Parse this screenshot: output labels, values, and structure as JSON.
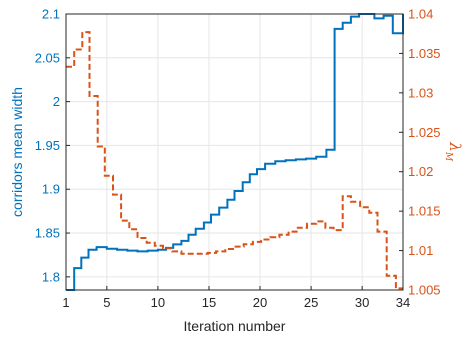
{
  "chart_data": {
    "type": "line",
    "xlabel": "Iteration number",
    "ylabel_left": "corridors mean width",
    "ylabel_right_main": "λ",
    "ylabel_right_sub": "M",
    "grid": true,
    "x_ticks": [
      1,
      5,
      10,
      15,
      20,
      25,
      30,
      34
    ],
    "x_ticklabels": [
      "1",
      "5",
      "10",
      "15",
      "20",
      "25",
      "30",
      "34"
    ],
    "xlim": [
      1,
      34
    ],
    "ylim_left": [
      1.785,
      2.1
    ],
    "ylim_right": [
      1.005,
      1.04
    ],
    "y_ticks_left": [
      1.8,
      1.85,
      1.9,
      1.95,
      2,
      2.05,
      2.1
    ],
    "y_ticklabels_left": [
      "1.8",
      "1.85",
      "1.9",
      "1.95",
      "2",
      "2.05",
      "2.1"
    ],
    "y_ticks_right": [
      1.005,
      1.01,
      1.015,
      1.02,
      1.025,
      1.03,
      1.035,
      1.04
    ],
    "y_ticklabels_right": [
      "1.005",
      "1.01",
      "1.015",
      "1.02",
      "1.025",
      "1.03",
      "1.035",
      "1.04"
    ],
    "colors": {
      "left": "#0072BD",
      "right": "#D95319",
      "grid": "#e6e6e6",
      "axis": "#262626"
    },
    "series": [
      {
        "axis": "left",
        "style": "solid-stairs",
        "x": [
          1,
          1.8,
          2.5,
          3.2,
          4,
          5,
          6,
          7,
          8,
          9,
          10,
          10.8,
          11.5,
          12.3,
          13,
          13.7,
          14.5,
          15.2,
          16,
          16.8,
          17.5,
          18.3,
          19,
          19.7,
          20.5,
          21.5,
          22.5,
          23.5,
          24.5,
          25.5,
          26.5,
          27.3,
          28.1,
          28.9,
          29.7,
          30.5,
          31.2,
          32.1,
          33,
          34
        ],
        "y": [
          1.785,
          1.81,
          1.822,
          1.831,
          1.834,
          1.832,
          1.831,
          1.83,
          1.829,
          1.83,
          1.831,
          1.833,
          1.837,
          1.841,
          1.848,
          1.855,
          1.862,
          1.871,
          1.879,
          1.888,
          1.898,
          1.908,
          1.917,
          1.923,
          1.929,
          1.932,
          1.933,
          1.934,
          1.935,
          1.937,
          1.945,
          2.083,
          2.09,
          2.097,
          2.1,
          2.1,
          2.095,
          2.098,
          2.078,
          2.1
        ]
      },
      {
        "axis": "right",
        "style": "dashed-stairs",
        "x": [
          1,
          1.8,
          2.6,
          3.3,
          4.1,
          4.8,
          5.6,
          6.4,
          7.2,
          8,
          8.9,
          9.7,
          10.5,
          11.4,
          12.3,
          13.2,
          14,
          14.9,
          15.7,
          16.6,
          17.5,
          18.4,
          19.3,
          20.1,
          21,
          21.9,
          22.8,
          23.7,
          24.6,
          25.5,
          26.4,
          27.2,
          28.1,
          28.9,
          29.8,
          30.7,
          31.5,
          32.4,
          33.3,
          34
        ],
        "y": [
          1.0333,
          1.0355,
          1.0377,
          1.0296,
          1.0232,
          1.0195,
          1.0171,
          1.0138,
          1.0127,
          1.0116,
          1.011,
          1.0106,
          1.0103,
          1.0099,
          1.0096,
          1.0096,
          1.0096,
          1.0097,
          1.0099,
          1.0102,
          1.0105,
          1.0108,
          1.0111,
          1.0114,
          1.0117,
          1.012,
          1.0124,
          1.0129,
          1.0134,
          1.0137,
          1.0129,
          1.0126,
          1.0169,
          1.0162,
          1.0155,
          1.0148,
          1.0124,
          1.0068,
          1.0052,
          1.0052
        ]
      }
    ]
  }
}
